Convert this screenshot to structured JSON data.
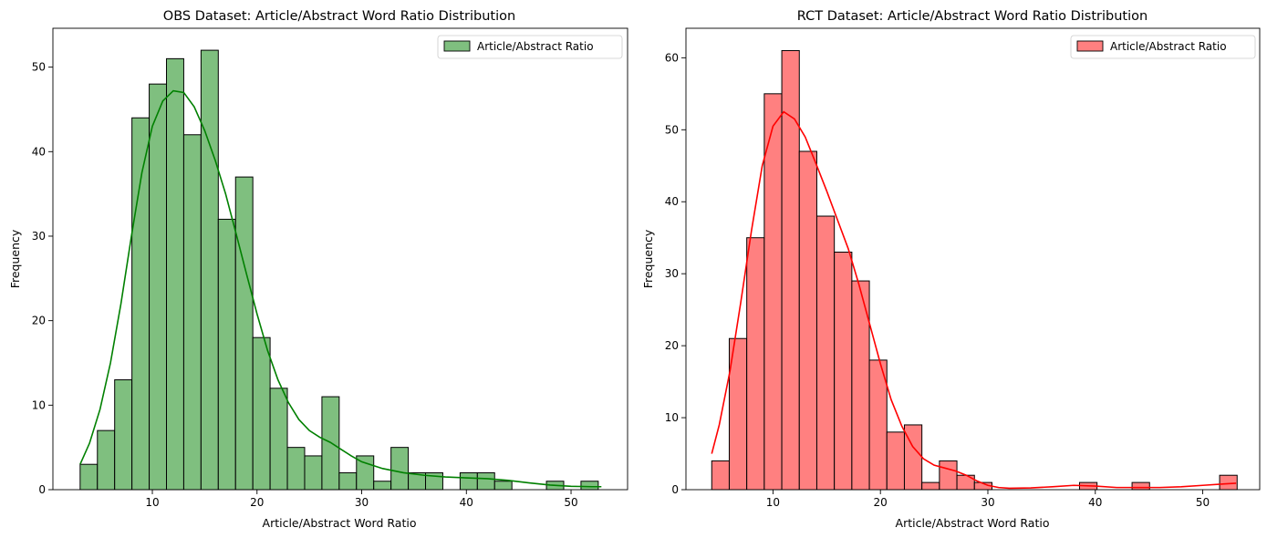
{
  "chart_data": [
    {
      "type": "bar",
      "title": "OBS Dataset: Article/Abstract Word Ratio Distribution",
      "xlabel": "Article/Abstract Word Ratio",
      "ylabel": "Frequency",
      "xlim": [
        0.5,
        55.4
      ],
      "ylim": [
        0,
        54.6
      ],
      "xticks": [
        10,
        20,
        30,
        40,
        50
      ],
      "yticks": [
        0,
        10,
        20,
        30,
        40,
        50
      ],
      "bin_start": 3.1,
      "bin_width": 1.65,
      "values": [
        3,
        7,
        13,
        44,
        48,
        51,
        42,
        52,
        32,
        37,
        18,
        12,
        5,
        4,
        11,
        2,
        4,
        1,
        5,
        2,
        2,
        0,
        2,
        2,
        1,
        0,
        0,
        1,
        0,
        1
      ],
      "kde": {
        "x": [
          3.1,
          4,
          5,
          6,
          7,
          8,
          9,
          10,
          11,
          12,
          13,
          14,
          15,
          16,
          17,
          18,
          19,
          20,
          21,
          22,
          23,
          24,
          25,
          26,
          27,
          28,
          29,
          30,
          32,
          34,
          36,
          38,
          40,
          42,
          44,
          46,
          48,
          50,
          52,
          52.9
        ],
        "y": [
          3,
          5.5,
          9.5,
          15,
          22,
          30,
          37.5,
          43,
          46,
          47.2,
          47,
          45.3,
          42.5,
          39,
          35,
          30.3,
          25.5,
          20.8,
          16.5,
          13,
          10.3,
          8.3,
          7,
          6.2,
          5.6,
          4.8,
          4,
          3.3,
          2.5,
          2,
          1.7,
          1.5,
          1.4,
          1.3,
          1.1,
          0.8,
          0.55,
          0.4,
          0.35,
          0.35
        ]
      },
      "color": "#008000",
      "fill": "#7fbf7f",
      "legend": {
        "label": "Article/Abstract Ratio",
        "position": "top-right"
      }
    },
    {
      "type": "bar",
      "title": "RCT Dataset: Article/Abstract Word Ratio Distribution",
      "xlabel": "Article/Abstract Word Ratio",
      "ylabel": "Frequency",
      "xlim": [
        1.9,
        55.3
      ],
      "ylim": [
        0,
        64.1
      ],
      "xticks": [
        10,
        20,
        30,
        40,
        50
      ],
      "yticks": [
        0,
        10,
        20,
        30,
        40,
        50,
        60
      ],
      "bin_start": 4.3,
      "bin_width": 1.63,
      "values": [
        4,
        21,
        35,
        55,
        61,
        47,
        38,
        33,
        29,
        18,
        8,
        9,
        1,
        4,
        2,
        1,
        0,
        0,
        0,
        0,
        0,
        1,
        0,
        0,
        1,
        0,
        0,
        0,
        0,
        2
      ],
      "kde": {
        "x": [
          4.3,
          5,
          6,
          7,
          8,
          9,
          10,
          11,
          12,
          13,
          14,
          15,
          16,
          17,
          18,
          19,
          20,
          21,
          22,
          23,
          24,
          25,
          26,
          27,
          28,
          29,
          30,
          31,
          32,
          34,
          36,
          38,
          40,
          42,
          44,
          46,
          48,
          50,
          52,
          53.1
        ],
        "y": [
          5,
          9,
          16.5,
          26,
          36,
          45,
          50.5,
          52.5,
          51.5,
          49,
          45.3,
          41.5,
          37.5,
          33.5,
          28.5,
          23,
          17.5,
          12.5,
          8.8,
          6,
          4.3,
          3.4,
          3,
          2.6,
          2,
          1.2,
          0.6,
          0.3,
          0.2,
          0.25,
          0.4,
          0.6,
          0.5,
          0.3,
          0.3,
          0.3,
          0.4,
          0.6,
          0.8,
          0.9
        ]
      },
      "color": "#ff0000",
      "fill": "#ff8080",
      "legend": {
        "label": "Article/Abstract Ratio",
        "position": "top-right"
      }
    }
  ]
}
